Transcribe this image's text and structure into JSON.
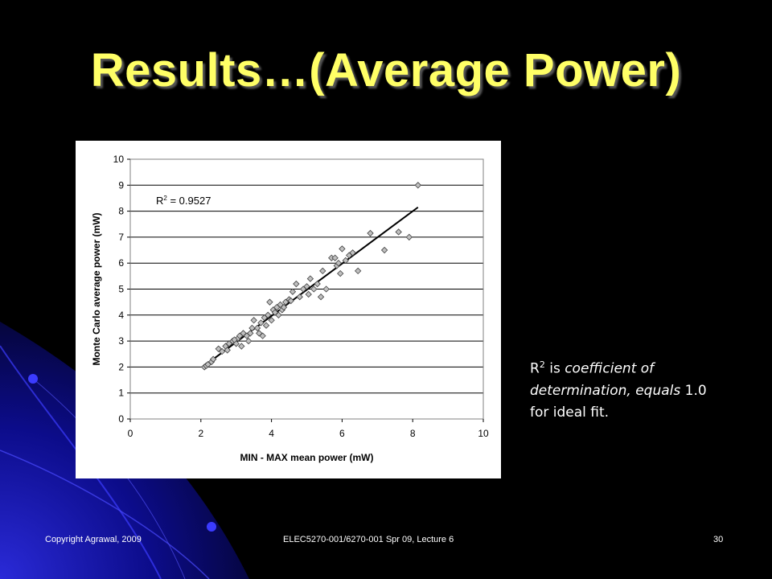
{
  "slide": {
    "title": "Results…(Average Power)",
    "note": {
      "r": "R",
      "sup": "2",
      "is": " is ",
      "italic": "coefficient of determination, equals",
      "rest": " 1.0 for ideal fit."
    },
    "footer": {
      "left": "Copyright Agrawal, 2009",
      "center": "ELEC5270-001/6270-001 Spr 09, Lecture 6",
      "right": "30"
    }
  },
  "chart_data": {
    "type": "scatter",
    "title": "",
    "xlabel": "MIN - MAX mean power (mW)",
    "ylabel": "Monte Carlo average power (mW)",
    "xlim": [
      0,
      10
    ],
    "ylim": [
      0,
      10
    ],
    "xticks": [
      "0",
      "2",
      "4",
      "6",
      "8",
      "10"
    ],
    "yticks": [
      "0",
      "1",
      "2",
      "3",
      "4",
      "5",
      "6",
      "7",
      "8",
      "9",
      "10"
    ],
    "grid": "horizontal",
    "annotation": {
      "r": "R",
      "sup": "2",
      "text": " = 0.9527"
    },
    "trendline": [
      [
        2.1,
        2.05
      ],
      [
        8.15,
        8.15
      ]
    ],
    "series": [
      {
        "marker": "diamond",
        "points": [
          [
            2.1,
            2.0
          ],
          [
            2.15,
            2.05
          ],
          [
            2.2,
            2.1
          ],
          [
            2.3,
            2.2
          ],
          [
            2.35,
            2.3
          ],
          [
            2.5,
            2.7
          ],
          [
            2.6,
            2.6
          ],
          [
            2.7,
            2.8
          ],
          [
            2.75,
            2.65
          ],
          [
            2.8,
            2.9
          ],
          [
            2.9,
            3.0
          ],
          [
            3.0,
            2.9
          ],
          [
            3.05,
            3.1
          ],
          [
            3.1,
            3.2
          ],
          [
            3.15,
            2.8
          ],
          [
            3.2,
            3.3
          ],
          [
            3.3,
            3.2
          ],
          [
            3.35,
            3.0
          ],
          [
            3.4,
            3.3
          ],
          [
            3.5,
            3.8
          ],
          [
            3.6,
            3.5
          ],
          [
            3.65,
            3.3
          ],
          [
            3.7,
            3.7
          ],
          [
            3.75,
            3.2
          ],
          [
            3.8,
            3.9
          ],
          [
            3.9,
            4.0
          ],
          [
            3.95,
            4.5
          ],
          [
            4.0,
            3.8
          ],
          [
            4.05,
            4.2
          ],
          [
            4.1,
            4.1
          ],
          [
            4.15,
            4.3
          ],
          [
            4.2,
            4.0
          ],
          [
            4.25,
            4.4
          ],
          [
            4.3,
            4.2
          ],
          [
            4.4,
            4.5
          ],
          [
            4.5,
            4.6
          ],
          [
            4.6,
            4.9
          ],
          [
            4.7,
            5.2
          ],
          [
            4.8,
            4.7
          ],
          [
            4.9,
            5.0
          ],
          [
            5.0,
            5.1
          ],
          [
            5.1,
            5.4
          ],
          [
            5.2,
            5.0
          ],
          [
            5.3,
            5.2
          ],
          [
            5.4,
            4.7
          ],
          [
            5.45,
            5.7
          ],
          [
            5.55,
            5.0
          ],
          [
            5.7,
            6.2
          ],
          [
            5.8,
            6.2
          ],
          [
            5.85,
            5.9
          ],
          [
            5.9,
            6.0
          ],
          [
            5.95,
            5.6
          ],
          [
            6.0,
            6.55
          ],
          [
            6.1,
            6.1
          ],
          [
            6.2,
            6.3
          ],
          [
            6.3,
            6.4
          ],
          [
            6.45,
            5.7
          ],
          [
            6.8,
            7.15
          ],
          [
            7.2,
            6.5
          ],
          [
            7.6,
            7.2
          ],
          [
            7.9,
            7.0
          ],
          [
            8.15,
            9.0
          ],
          [
            3.85,
            3.6
          ],
          [
            4.35,
            4.3
          ],
          [
            3.45,
            3.5
          ],
          [
            4.55,
            4.55
          ],
          [
            5.05,
            4.8
          ],
          [
            2.95,
            3.05
          ]
        ]
      }
    ]
  }
}
